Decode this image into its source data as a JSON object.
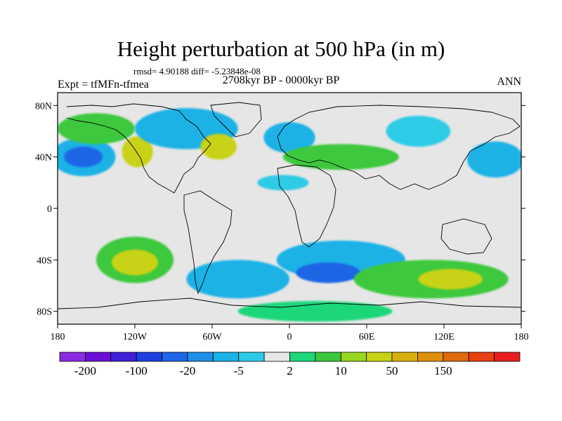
{
  "header": {
    "title": "Height perturbation at 500 hPa (in m)",
    "stats": "rmsd= 4.90188 diff= -5.23848e-08",
    "period": "2708kyr BP - 0000kyr BP",
    "experiment": "Expt = tfMFn-tfmea",
    "season": "ANN"
  },
  "axes": {
    "lat_ticks": [
      {
        "value": 80,
        "label": "80N"
      },
      {
        "value": 40,
        "label": "40N"
      },
      {
        "value": 0,
        "label": "0"
      },
      {
        "value": -40,
        "label": "40S"
      },
      {
        "value": -80,
        "label": "80S"
      }
    ],
    "lon_ticks": [
      {
        "value": -180,
        "label": "180"
      },
      {
        "value": -120,
        "label": "120W"
      },
      {
        "value": -60,
        "label": "60W"
      },
      {
        "value": 0,
        "label": "0"
      },
      {
        "value": 60,
        "label": "60E"
      },
      {
        "value": 120,
        "label": "120E"
      },
      {
        "value": 180,
        "label": "180"
      }
    ]
  },
  "colorbar": {
    "colors": [
      "#8a2be2",
      "#6a0fd8",
      "#3f1fd8",
      "#1f3fe0",
      "#1e66e6",
      "#1e8ee8",
      "#1ab2e6",
      "#2ecbe6",
      "#e6e6e6",
      "#1ed77a",
      "#3cc83c",
      "#98d61e",
      "#c8d214",
      "#d8b00e",
      "#e0900e",
      "#e06a0e",
      "#e84010",
      "#e81e1e"
    ],
    "labels": [
      {
        "boundary": 1,
        "text": "-200"
      },
      {
        "boundary": 3,
        "text": "-100"
      },
      {
        "boundary": 5,
        "text": "-20"
      },
      {
        "boundary": 7,
        "text": "-5"
      },
      {
        "boundary": 9,
        "text": "2"
      },
      {
        "boundary": 11,
        "text": "10"
      },
      {
        "boundary": 13,
        "text": "50"
      },
      {
        "boundary": 15,
        "text": "150"
      }
    ]
  },
  "map_fields": [
    {
      "name": "blob-n-pacific-neg",
      "lon": -160,
      "lat": 40,
      "rlon": 25,
      "rlat": 15,
      "level": "neg-mid"
    },
    {
      "name": "blob-n-pacific-neg-core",
      "lon": -160,
      "lat": 40,
      "rlon": 15,
      "rlat": 8,
      "level": "neg-strong"
    },
    {
      "name": "blob-alaska-pos",
      "lon": -150,
      "lat": 62,
      "rlon": 30,
      "rlat": 12,
      "level": "pos-mid"
    },
    {
      "name": "blob-w-namerica-pos",
      "lon": -118,
      "lat": 44,
      "rlon": 12,
      "rlat": 12,
      "level": "pos-strong"
    },
    {
      "name": "blob-canada-neg",
      "lon": -80,
      "lat": 62,
      "rlon": 40,
      "rlat": 16,
      "level": "neg-mid"
    },
    {
      "name": "blob-natlantic-pos",
      "lon": -55,
      "lat": 48,
      "rlon": 14,
      "rlat": 10,
      "level": "pos-strong"
    },
    {
      "name": "blob-europe-neg",
      "lon": 0,
      "lat": 55,
      "rlon": 20,
      "rlat": 12,
      "level": "neg-mid"
    },
    {
      "name": "blob-asia-pos",
      "lon": 40,
      "lat": 40,
      "rlon": 45,
      "rlat": 10,
      "level": "pos-mid"
    },
    {
      "name": "blob-nafrica-neg",
      "lon": -5,
      "lat": 20,
      "rlon": 20,
      "rlat": 6,
      "level": "neg-weak"
    },
    {
      "name": "blob-siberia-neg",
      "lon": 100,
      "lat": 60,
      "rlon": 25,
      "rlat": 12,
      "level": "neg-weak"
    },
    {
      "name": "blob-npacific-west-neg",
      "lon": 160,
      "lat": 38,
      "rlon": 22,
      "rlat": 14,
      "level": "neg-mid"
    },
    {
      "name": "blob-spacific-pos",
      "lon": -120,
      "lat": -40,
      "rlon": 30,
      "rlat": 18,
      "level": "pos-mid"
    },
    {
      "name": "blob-spacific-pos-core",
      "lon": -120,
      "lat": -42,
      "rlon": 18,
      "rlat": 10,
      "level": "pos-strong"
    },
    {
      "name": "blob-satlantic-neg",
      "lon": -40,
      "lat": -55,
      "rlon": 40,
      "rlat": 15,
      "level": "neg-mid"
    },
    {
      "name": "blob-sindian-neg",
      "lon": 40,
      "lat": -40,
      "rlon": 50,
      "rlat": 15,
      "level": "neg-mid"
    },
    {
      "name": "blob-sindian-neg-core",
      "lon": 30,
      "lat": -50,
      "rlon": 25,
      "rlat": 8,
      "level": "neg-strong"
    },
    {
      "name": "blob-aus-pos",
      "lon": 110,
      "lat": -55,
      "rlon": 60,
      "rlat": 15,
      "level": "pos-mid"
    },
    {
      "name": "blob-aus-pos-core",
      "lon": 125,
      "lat": -55,
      "rlon": 25,
      "rlat": 8,
      "level": "pos-strong"
    },
    {
      "name": "blob-antarctic-pos",
      "lon": 20,
      "lat": -80,
      "rlon": 60,
      "rlat": 8,
      "level": "pos-weak"
    }
  ]
}
